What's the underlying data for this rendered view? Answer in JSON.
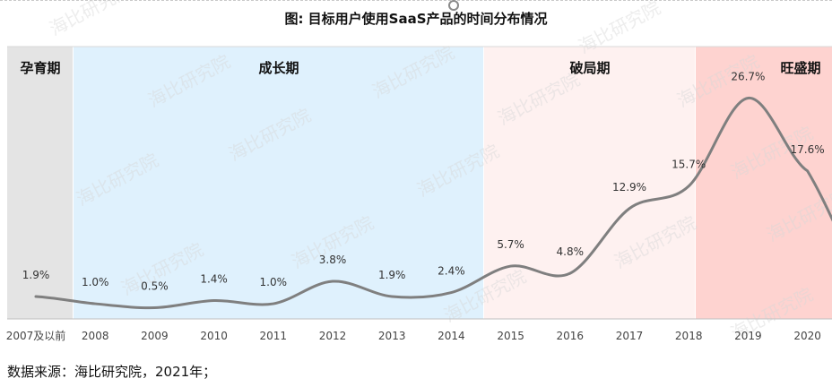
{
  "title": "图: 目标用户使用SaaS产品的时间分布情况",
  "source": "数据来源：海比研究院，2021年；",
  "watermark": "海比研究院",
  "phases": [
    {
      "name": "孕育期",
      "color": "#e4e4e4",
      "from": 0,
      "to": 0
    },
    {
      "name": "成长期",
      "color": "#dff1fd",
      "from": 1,
      "to": 7
    },
    {
      "name": "破局期",
      "color": "#fef1f0",
      "from": 8,
      "to": 11
    },
    {
      "name": "旺盛期",
      "color": "#fed3d0",
      "from": 12,
      "to": 13
    }
  ],
  "chart_data": {
    "type": "line",
    "title": "图: 目标用户使用SaaS产品的时间分布情况",
    "categories": [
      "2007及以前",
      "2008",
      "2009",
      "2010",
      "2011",
      "2012",
      "2013",
      "2014",
      "2015",
      "2016",
      "2017",
      "2018",
      "2019",
      "2020"
    ],
    "series": [
      {
        "values": [
          1.9,
          1.0,
          0.5,
          1.4,
          1.0,
          3.8,
          1.9,
          2.4,
          5.7,
          4.8,
          12.9,
          15.7,
          26.7,
          17.6
        ],
        "labels": [
          "1.9%",
          "1.0%",
          "0.5%",
          "1.4%",
          "1.0%",
          "3.8%",
          "1.9%",
          "2.4%",
          "5.7%",
          "4.8%",
          "12.9%",
          "15.7%",
          "26.7%",
          "17.6%"
        ]
      }
    ],
    "xlabel": "",
    "ylabel": "",
    "ylim": [
      0,
      30
    ],
    "grid": false,
    "line_color": "#7f7f7f"
  }
}
